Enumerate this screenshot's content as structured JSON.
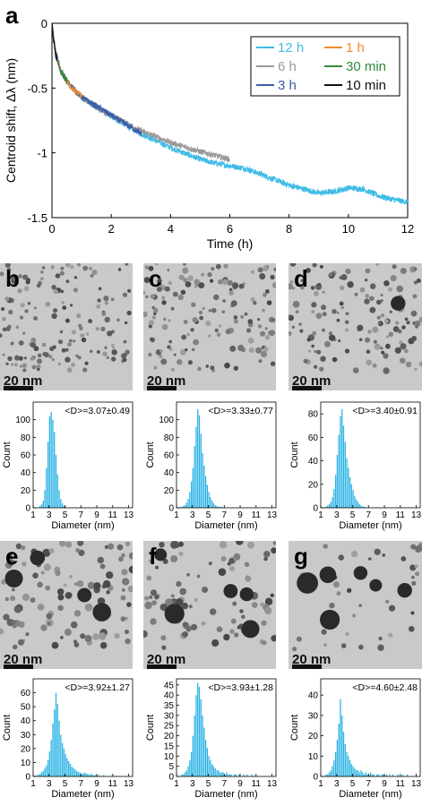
{
  "panel_letters": [
    "a",
    "b",
    "c",
    "d",
    "e",
    "f",
    "g"
  ],
  "scale_bar_label": "20 nm",
  "colors": {
    "12 h": "#3fbbe6",
    "6 h": "#999999",
    "3 h": "#3a5ea8",
    "1 h": "#f08a2a",
    "30 min": "#2f8a3e",
    "10 min": "#111111",
    "histogram": "#2ab3e4"
  },
  "chart_data": [
    {
      "type": "line",
      "panel": "a",
      "xlabel": "Time (h)",
      "ylabel": "Centroid shift, Δλ (nm)",
      "xlim": [
        0,
        12
      ],
      "ylim": [
        -1.5,
        0
      ],
      "xticks": [
        0,
        2,
        4,
        6,
        8,
        10,
        12
      ],
      "yticks": [
        0,
        -0.5,
        -1,
        -1.5
      ],
      "ytick_labels": [
        "0",
        "-0.5",
        "-1",
        "-1.5"
      ],
      "legend": [
        "12 h",
        "1 h",
        "6 h",
        "30 min",
        "3 h",
        "10 min"
      ],
      "legend_position": "top-right",
      "series": [
        {
          "name": "12 h",
          "x": [
            0,
            0.1,
            0.3,
            0.6,
            1,
            1.5,
            2,
            3,
            4,
            5,
            5.5,
            6,
            6.5,
            7,
            8,
            9,
            9.5,
            10,
            10.5,
            11,
            11.5,
            12
          ],
          "y": [
            0,
            -0.2,
            -0.38,
            -0.48,
            -0.57,
            -0.65,
            -0.72,
            -0.85,
            -0.96,
            -1.05,
            -1.08,
            -1.1,
            -1.12,
            -1.16,
            -1.25,
            -1.31,
            -1.3,
            -1.27,
            -1.28,
            -1.33,
            -1.36,
            -1.38
          ]
        },
        {
          "name": "6 h",
          "x": [
            0,
            0.1,
            0.3,
            0.6,
            1,
            1.5,
            2,
            3,
            4,
            5,
            6
          ],
          "y": [
            0,
            -0.2,
            -0.38,
            -0.48,
            -0.57,
            -0.65,
            -0.71,
            -0.83,
            -0.92,
            -0.99,
            -1.05
          ]
        },
        {
          "name": "3 h",
          "x": [
            0,
            0.1,
            0.3,
            0.6,
            1,
            1.5,
            2,
            2.5,
            3
          ],
          "y": [
            0,
            -0.2,
            -0.37,
            -0.47,
            -0.57,
            -0.64,
            -0.71,
            -0.78,
            -0.85
          ]
        },
        {
          "name": "1 h",
          "x": [
            0,
            0.1,
            0.2,
            0.3,
            0.5,
            0.7,
            1
          ],
          "y": [
            0,
            -0.2,
            -0.3,
            -0.37,
            -0.45,
            -0.51,
            -0.56
          ]
        },
        {
          "name": "30 min",
          "x": [
            0,
            0.05,
            0.1,
            0.2,
            0.3,
            0.4,
            0.5
          ],
          "y": [
            0,
            -0.12,
            -0.2,
            -0.3,
            -0.37,
            -0.41,
            -0.45
          ]
        },
        {
          "name": "10 min",
          "x": [
            0,
            0.03,
            0.06,
            0.1,
            0.13,
            0.17
          ],
          "y": [
            0,
            -0.08,
            -0.14,
            -0.2,
            -0.25,
            -0.28
          ]
        }
      ]
    },
    {
      "type": "bar",
      "panel": "b",
      "xlabel": "Diameter (nm)",
      "ylabel": "Count",
      "annotation": "<D>=3.07±0.49",
      "xlim": [
        1,
        13.5
      ],
      "xticks": [
        1,
        3,
        5,
        7,
        9,
        11,
        13
      ],
      "ylim": [
        0,
        120
      ],
      "yticks": [
        0,
        20,
        40,
        60,
        80,
        100
      ],
      "bin_start": 1,
      "bin_width": 0.2,
      "values": [
        0,
        0,
        0,
        0,
        2,
        4,
        8,
        20,
        45,
        75,
        104,
        109,
        100,
        86,
        60,
        38,
        20,
        10,
        5,
        2,
        1,
        0,
        0,
        0,
        0,
        0
      ]
    },
    {
      "type": "bar",
      "panel": "c",
      "xlabel": "Diameter (nm)",
      "ylabel": "Count",
      "annotation": "<D>=3.33±0.77",
      "xlim": [
        1,
        13.5
      ],
      "xticks": [
        1,
        3,
        5,
        7,
        9,
        11,
        13
      ],
      "ylim": [
        0,
        120
      ],
      "yticks": [
        0,
        20,
        40,
        60,
        80,
        100
      ],
      "bin_start": 1,
      "bin_width": 0.2,
      "values": [
        0,
        0,
        1,
        1,
        2,
        3,
        6,
        10,
        18,
        30,
        45,
        70,
        92,
        112,
        105,
        84,
        62,
        48,
        36,
        26,
        18,
        12,
        8,
        5,
        3,
        2,
        1,
        1,
        1,
        0,
        0
      ]
    },
    {
      "type": "bar",
      "panel": "d",
      "xlabel": "Diameter (nm)",
      "ylabel": "Count",
      "annotation": "<D>=3.40±0.91",
      "xlim": [
        1,
        13.5
      ],
      "xticks": [
        1,
        3,
        5,
        7,
        9,
        11,
        13
      ],
      "ylim": [
        0,
        90
      ],
      "yticks": [
        0,
        20,
        40,
        60,
        80
      ],
      "bin_start": 1,
      "bin_width": 0.2,
      "values": [
        0,
        0,
        0,
        1,
        2,
        3,
        5,
        9,
        16,
        28,
        45,
        62,
        78,
        84,
        70,
        56,
        42,
        34,
        26,
        20,
        15,
        10,
        7,
        5,
        3,
        2,
        1,
        1,
        0,
        0
      ]
    },
    {
      "type": "bar",
      "panel": "e",
      "xlabel": "Diameter (nm)",
      "ylabel": "Count",
      "annotation": "<D>=3.92±1.27",
      "xlim": [
        1,
        13.5
      ],
      "xticks": [
        1,
        3,
        5,
        7,
        9,
        11,
        13
      ],
      "ylim": [
        0,
        70
      ],
      "yticks": [
        0,
        10,
        20,
        30,
        40,
        50,
        60
      ],
      "bin_start": 1,
      "bin_width": 0.2,
      "values": [
        0,
        0,
        1,
        1,
        2,
        3,
        4,
        6,
        8,
        12,
        18,
        26,
        38,
        48,
        60,
        52,
        40,
        30,
        24,
        20,
        16,
        13,
        11,
        9,
        7,
        6,
        5,
        4,
        3,
        3,
        2,
        2,
        3,
        2,
        2,
        1,
        2,
        1,
        1,
        1,
        0,
        1,
        0,
        0,
        1,
        0
      ]
    },
    {
      "type": "bar",
      "panel": "f",
      "xlabel": "Diameter (nm)",
      "ylabel": "Count",
      "annotation": "<D>=3.93±1.28",
      "xlim": [
        1,
        13.5
      ],
      "xticks": [
        1,
        3,
        5,
        7,
        9,
        11,
        13
      ],
      "ylim": [
        0,
        48
      ],
      "yticks": [
        0,
        5,
        10,
        15,
        20,
        25,
        30,
        35,
        40,
        45
      ],
      "bin_start": 1,
      "bin_width": 0.2,
      "values": [
        0,
        0,
        0,
        1,
        1,
        2,
        3,
        5,
        8,
        12,
        20,
        30,
        40,
        46,
        44,
        38,
        30,
        24,
        18,
        14,
        10,
        8,
        6,
        5,
        4,
        3,
        3,
        2,
        2,
        2,
        1,
        2,
        1,
        1,
        1,
        0,
        1,
        1,
        0,
        1,
        0,
        0,
        1,
        0,
        1,
        0,
        0,
        1
      ]
    },
    {
      "type": "bar",
      "panel": "g",
      "xlabel": "Diameter (nm)",
      "ylabel": "Count",
      "annotation": "<D>=4.60±2.48",
      "xlim": [
        1,
        13.5
      ],
      "xticks": [
        1,
        3,
        5,
        7,
        9,
        11,
        13
      ],
      "ylim": [
        0,
        48
      ],
      "yticks": [
        0,
        10,
        20,
        30,
        40
      ],
      "bin_start": 1,
      "bin_width": 0.2,
      "values": [
        0,
        0,
        0,
        1,
        1,
        2,
        3,
        5,
        8,
        12,
        18,
        26,
        38,
        30,
        22,
        16,
        12,
        10,
        8,
        6,
        5,
        4,
        3,
        3,
        2,
        3,
        2,
        1,
        2,
        1,
        1,
        2,
        1,
        1,
        0,
        1,
        1,
        0,
        1,
        1,
        0,
        1,
        0,
        1,
        0,
        1,
        0,
        0,
        1,
        0,
        0,
        1,
        0,
        0,
        1,
        0
      ]
    }
  ]
}
